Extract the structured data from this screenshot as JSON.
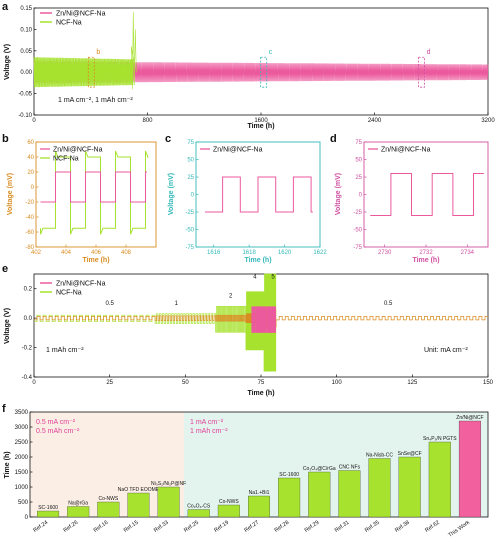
{
  "colors": {
    "zn": "#ec5a9e",
    "ncf": "#a6e22e",
    "orange": "#d98c20",
    "teal": "#33b8b8",
    "pink": "#d04fa0",
    "bgLeft": "#fbeee4",
    "bgRight": "#e3f3ee",
    "bar_zn": "#f2609e",
    "bar_ref": "#a6e22e",
    "note_pink": "#e0409a"
  },
  "series_names": {
    "zn": "Zn/Ni@NCF-Na",
    "ncf": "NCF-Na"
  },
  "panels": {
    "a": "a",
    "b": "b",
    "c": "c",
    "d": "d",
    "e": "e",
    "f": "f"
  },
  "chart_data": [
    {
      "panel": "a",
      "type": "line",
      "xlabel": "Time (h)",
      "ylabel": "Voltage (V)",
      "xlim": [
        0,
        3200
      ],
      "ylim": [
        -0.1,
        0.15
      ],
      "xticks": [
        "0",
        "800",
        "1600",
        "2400",
        "3200"
      ],
      "yticks": [
        "-0.10",
        "-0.05",
        "0.00",
        "0.05",
        "0.10",
        "0.15"
      ],
      "note": "1 mA cm⁻², 1 mAh cm⁻²",
      "markers": [
        "b",
        "c",
        "d"
      ],
      "series": [
        {
          "name": "Zn/Ni@NCF-Na",
          "x_range": [
            0,
            3200
          ],
          "amplitude_v": [
            0.025,
            0.018
          ]
        },
        {
          "name": "NCF-Na",
          "x_range": [
            0,
            700
          ],
          "amplitude_v": [
            0.035,
            0.03
          ],
          "short_circuit_at_h": 700,
          "spike_max_v": 0.14
        }
      ]
    },
    {
      "panel": "b",
      "type": "line",
      "xlabel": "Time (h)",
      "ylabel": "Voltage (mV)",
      "xlim": [
        402,
        410
      ],
      "ylim": [
        -80,
        60
      ],
      "xticks": [
        "402",
        "404",
        "406",
        "408"
      ],
      "yticks": [
        "-80",
        "-60",
        "-40",
        "-20",
        "0",
        "20",
        "40",
        "60"
      ],
      "series": [
        {
          "name": "Zn/Ni@NCF-Na",
          "plateau_mv": 20
        },
        {
          "name": "NCF-Na",
          "plateau_mv": 40,
          "peak_mv": 45,
          "dip_mv": -60
        }
      ]
    },
    {
      "panel": "c",
      "type": "line",
      "xlabel": "Time (h)",
      "ylabel": "Voltage (mV)",
      "xlim": [
        1615,
        1622
      ],
      "ylim": [
        -75,
        75
      ],
      "xticks": [
        "1616",
        "1618",
        "1620",
        "1622"
      ],
      "yticks": [
        "-75",
        "-50",
        "-25",
        "0",
        "25",
        "50",
        "75"
      ],
      "series": [
        {
          "name": "Zn/Ni@NCF-Na",
          "plateau_mv": 25
        }
      ]
    },
    {
      "panel": "d",
      "type": "line",
      "xlabel": "Time (h)",
      "ylabel": "Voltage (mV)",
      "xlim": [
        2729,
        2735
      ],
      "ylim": [
        -75,
        75
      ],
      "xticks": [
        "2730",
        "2732",
        "2734"
      ],
      "yticks": [
        "-75",
        "-50",
        "-25",
        "0",
        "25",
        "50",
        "75"
      ],
      "series": [
        {
          "name": "Zn/Ni@NCF-Na",
          "plateau_mv": 30
        }
      ]
    },
    {
      "panel": "e",
      "type": "line",
      "xlabel": "Time (h)",
      "ylabel": "Voltage (V)",
      "xlim": [
        0,
        150
      ],
      "ylim": [
        -0.4,
        0.3
      ],
      "xticks": [
        "0",
        "25",
        "50",
        "75",
        "100",
        "125",
        "150"
      ],
      "yticks": [
        "-0.4",
        "-0.2",
        "0.0",
        "0.2"
      ],
      "note_left": "1 mAh cm⁻²",
      "note_right": "Unit: mA cm⁻²",
      "rate_labels": [
        {
          "label": "0.5",
          "x_h": 25
        },
        {
          "label": "1",
          "x_h": 47
        },
        {
          "label": "2",
          "x_h": 65
        },
        {
          "label": "4",
          "x_h": 73
        },
        {
          "label": "5",
          "x_h": 79
        },
        {
          "label": "0.5",
          "x_h": 117
        }
      ]
    },
    {
      "panel": "f",
      "type": "bar",
      "ylabel": "Time (h)",
      "ylim": [
        0,
        3500
      ],
      "yticks": [
        "0",
        "500",
        "1000",
        "1500",
        "2000",
        "2500",
        "3000",
        "3500"
      ],
      "region_labels": [
        [
          "0.5 mA cm⁻²",
          "0.5 mAh cm⁻²"
        ],
        [
          "1 mA cm⁻²",
          "1 mAh cm⁻²"
        ]
      ],
      "categories": [
        "Ref.24",
        "Ref.26",
        "Ref.16",
        "Ref.15",
        "Ref.33",
        "Ref.25",
        "Ref.19",
        "Ref.27",
        "Ref.28",
        "Ref.29",
        "Ref.31",
        "Ref.35",
        "Ref.38",
        "Ref.62",
        "This Work"
      ],
      "bar_labels": [
        "SC-1600",
        "Na@rGa",
        "Co-NWS",
        "NaO TFD EOOME",
        "Ni₃S₂/Ni₂P@NF",
        "Co₃O₄-CS",
        "Co-NWS",
        "Na1.+Bi1",
        "SC-1600",
        "Co₃O₄@C/rGa",
        "CNC NFs",
        "Na-Nisb-CC",
        "SnSe@CF",
        "Sn₄P₃/N PGTS",
        "Zn/Ni@NCF"
      ],
      "values": [
        200,
        350,
        500,
        800,
        1000,
        250,
        400,
        700,
        1300,
        1500,
        1550,
        1950,
        2000,
        2500,
        3200
      ]
    }
  ]
}
